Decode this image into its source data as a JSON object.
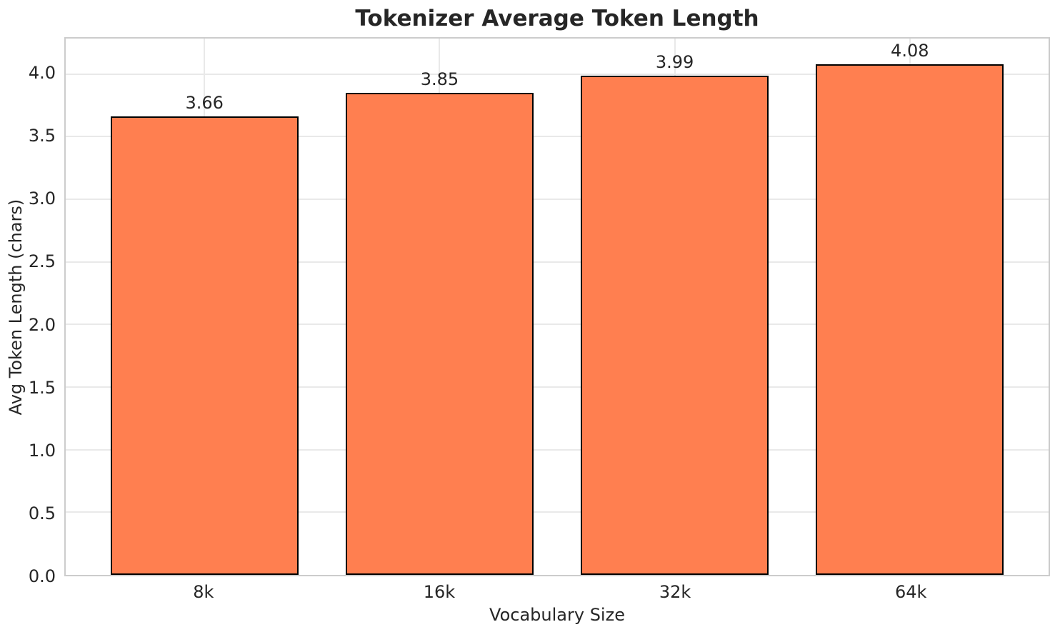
{
  "chart_data": {
    "type": "bar",
    "title": "Tokenizer Average Token Length",
    "xlabel": "Vocabulary Size",
    "ylabel": "Avg Token Length (chars)",
    "categories": [
      "8k",
      "16k",
      "32k",
      "64k"
    ],
    "values": [
      3.66,
      3.85,
      3.99,
      4.08
    ],
    "value_labels": [
      "3.66",
      "3.85",
      "3.99",
      "4.08"
    ],
    "ytick_labels": [
      "0.0",
      "0.5",
      "1.0",
      "1.5",
      "2.0",
      "2.5",
      "3.0",
      "3.5",
      "4.0"
    ],
    "yticks": [
      0.0,
      0.5,
      1.0,
      1.5,
      2.0,
      2.5,
      3.0,
      3.5,
      4.0
    ],
    "ylim": [
      0,
      4.284
    ],
    "xlim": [
      -0.59,
      3.59
    ],
    "bar_width": 0.8,
    "grid": true,
    "legend_position": "none",
    "colors": {
      "bar_fill": "#FF7F50",
      "bar_edge": "#000000",
      "grid": "#E9E9E9",
      "spine": "#CCCCCC",
      "text": "#262626",
      "background": "#FFFFFF"
    }
  }
}
